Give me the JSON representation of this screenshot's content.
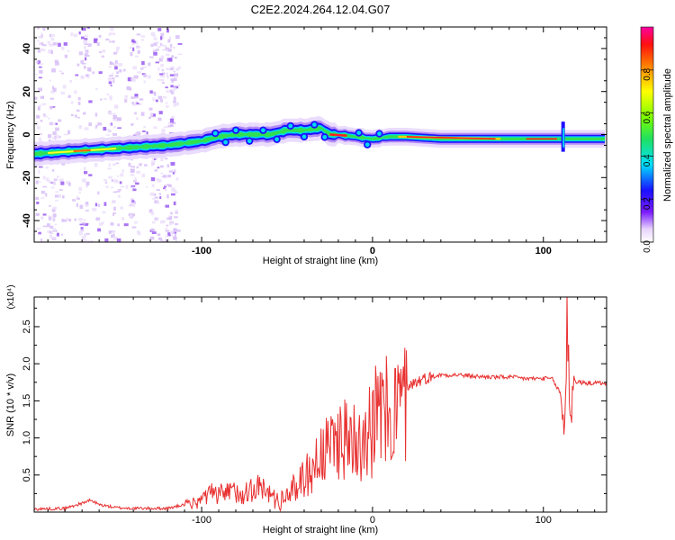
{
  "title": "C2E2.2024.264.12.04.G07",
  "chart_data": [
    {
      "type": "heatmap",
      "xlabel": "Height of straight line (km)",
      "ylabel": "Frequency (Hz)",
      "xlim": [
        -198,
        137
      ],
      "ylim": [
        -50,
        50
      ],
      "xticks": [
        -100,
        0,
        100
      ],
      "xtick_labels": [
        "-100",
        "0",
        "100"
      ],
      "yticks": [
        -40,
        -20,
        0,
        20,
        40
      ],
      "ytick_labels": [
        "-40",
        "-20",
        "0",
        "20",
        "40"
      ],
      "grid": false,
      "colorbar": {
        "label": "Normalized spectral amplitude",
        "range": [
          0,
          1
        ],
        "ticks": [
          0.0,
          0.2,
          0.4,
          0.6,
          0.8
        ],
        "tick_labels": [
          "0.0",
          "0.2",
          "0.4",
          "0.6",
          "0.8"
        ]
      },
      "ridge": {
        "x": [
          -198,
          -180,
          -160,
          -140,
          -120,
          -100,
          -90,
          -80,
          -70,
          -60,
          -50,
          -40,
          -30,
          -25,
          -20,
          -10,
          0,
          10,
          20,
          40,
          60,
          80,
          100,
          120,
          137
        ],
        "y": [
          -9,
          -8,
          -7,
          -6,
          -5,
          -3,
          -1,
          0,
          0,
          0,
          2,
          2,
          3,
          0,
          0,
          -1,
          -2,
          -1,
          -1,
          -2,
          -2,
          -2,
          -2,
          -2,
          -2
        ]
      }
    },
    {
      "type": "line",
      "xlabel": "Height of straight line (km)",
      "ylabel": "SNR (10 * v/v)",
      "multiplier": "(x10⁴)",
      "xlim": [
        -198,
        137
      ],
      "ylim": [
        0,
        2.9
      ],
      "xticks": [
        -100,
        0,
        100
      ],
      "xtick_labels": [
        "-100",
        "0",
        "100"
      ],
      "yticks": [
        0.5,
        1.0,
        1.5,
        2.0,
        2.5
      ],
      "ytick_labels": [
        "0.5",
        "1.0",
        "1.5",
        "2.0",
        "2.5"
      ],
      "grid": false,
      "color": "#e83030",
      "series": [
        {
          "x": [
            -198,
            -180,
            -170,
            -165,
            -160,
            -150,
            -140,
            -120,
            -110,
            -100,
            -95,
            -90,
            -85,
            -80,
            -75,
            -70,
            -65,
            -60,
            -55,
            -50,
            -45,
            -40,
            -35,
            -30,
            -25,
            -20,
            -15,
            -10,
            -5,
            0,
            5,
            10,
            15,
            20,
            25,
            30,
            40,
            50,
            60,
            70,
            80,
            90,
            100,
            105,
            110,
            112,
            114,
            116,
            118,
            120,
            125,
            130,
            137
          ],
          "y": [
            0.04,
            0.05,
            0.12,
            0.16,
            0.1,
            0.06,
            0.05,
            0.05,
            0.1,
            0.18,
            0.28,
            0.25,
            0.3,
            0.32,
            0.3,
            0.38,
            0.36,
            0.28,
            0.15,
            0.25,
            0.38,
            0.55,
            0.7,
            0.9,
            0.95,
            1.2,
            1.1,
            1.2,
            1.3,
            1.4,
            1.5,
            1.55,
            1.6,
            1.7,
            1.75,
            1.8,
            1.85,
            1.85,
            1.83,
            1.82,
            1.82,
            1.8,
            1.8,
            1.8,
            1.6,
            1.1,
            2.4,
            1.3,
            1.78,
            1.75,
            1.74,
            1.74,
            1.74
          ]
        }
      ]
    }
  ]
}
